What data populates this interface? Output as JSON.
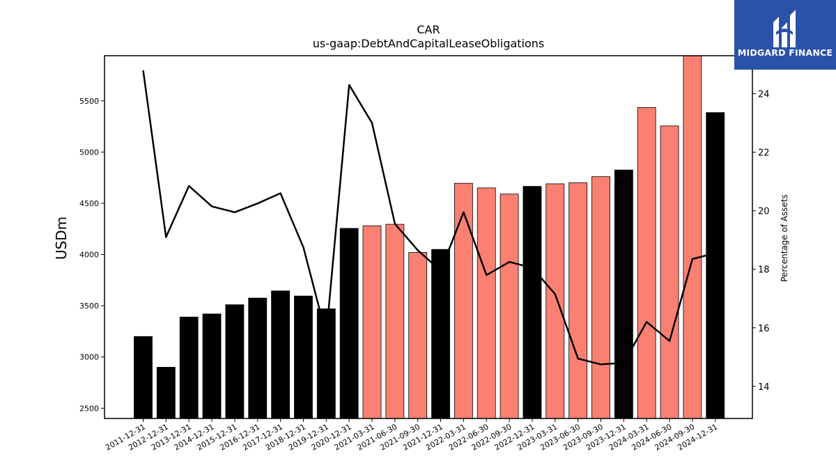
{
  "logo": {
    "text": "MIDGARD FINANCE",
    "background": "#2a52a8"
  },
  "chart_data": {
    "type": "bar",
    "title": "CAR",
    "subtitle": "us-gaap:DebtAndCapitalLeaseObligations",
    "ylabel": "USDm",
    "y2label": "Percentage of Assets",
    "ylim": [
      2400,
      5940
    ],
    "y2lim": [
      12.9,
      25.3
    ],
    "yticks": [
      2500,
      3000,
      3500,
      4000,
      4500,
      5000,
      5500
    ],
    "y2ticks": [
      14,
      16,
      18,
      20,
      22,
      24
    ],
    "categories": [
      "2011-12-31",
      "2012-12-31",
      "2013-12-31",
      "2014-12-31",
      "2015-12-31",
      "2016-12-31",
      "2017-12-31",
      "2018-12-31",
      "2019-12-31",
      "2020-12-31",
      "2021-03-31",
      "2021-06-30",
      "2021-09-30",
      "2021-12-31",
      "2022-03-31",
      "2022-06-30",
      "2022-09-30",
      "2022-12-31",
      "2023-03-31",
      "2023-06-30",
      "2023-09-30",
      "2023-12-31",
      "2024-03-31",
      "2024-06-30",
      "2024-09-30",
      "2024-12-31"
    ],
    "series": [
      {
        "kind": "bar",
        "values": [
          3200,
          2900,
          3390,
          3420,
          3510,
          3575,
          3645,
          3595,
          3470,
          4255,
          4280,
          4295,
          4020,
          4050,
          4695,
          4650,
          4590,
          4665,
          4690,
          4700,
          4760,
          4825,
          5435,
          5255,
          6000,
          5385
        ],
        "colors": [
          "#000000",
          "#000000",
          "#000000",
          "#000000",
          "#000000",
          "#000000",
          "#000000",
          "#000000",
          "#000000",
          "#000000",
          "#fa8072",
          "#fa8072",
          "#fa8072",
          "#000000",
          "#fa8072",
          "#fa8072",
          "#fa8072",
          "#000000",
          "#fa8072",
          "#fa8072",
          "#fa8072",
          "#000000",
          "#fa8072",
          "#fa8072",
          "#fa8072",
          "#000000"
        ]
      },
      {
        "kind": "line",
        "axis": "right",
        "color": "#000000",
        "values": [
          24.8,
          19.1,
          20.85,
          20.15,
          19.95,
          20.25,
          20.6,
          18.75,
          15.75,
          24.3,
          23.0,
          19.55,
          18.65,
          17.95,
          19.95,
          17.8,
          18.25,
          18.05,
          17.15,
          14.95,
          14.75,
          14.8,
          16.2,
          15.55,
          18.35,
          18.55
        ]
      }
    ]
  }
}
